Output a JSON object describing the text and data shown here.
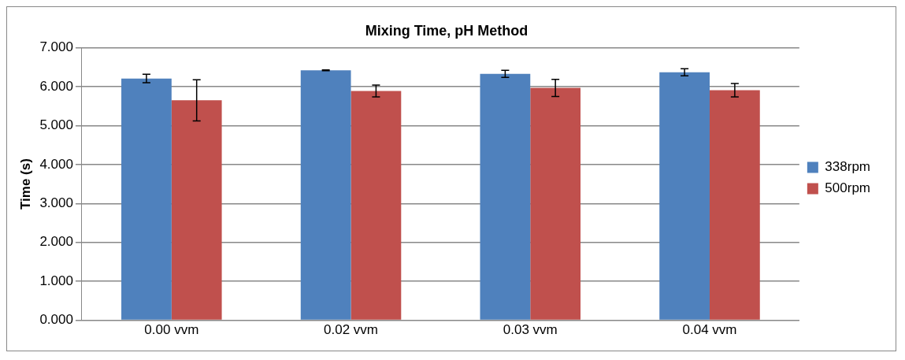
{
  "chart_data": {
    "type": "bar",
    "title": "Mixing Time, pH Method",
    "ylabel": "Time (s)",
    "categories": [
      "0.00 vvm",
      "0.02 vvm",
      "0.03 vvm",
      "0.04 vvm"
    ],
    "series": [
      {
        "name": "338rpm",
        "color": "#4f81bd",
        "values": [
          6.21,
          6.42,
          6.33,
          6.37
        ],
        "errors": [
          0.11,
          0.01,
          0.09,
          0.09
        ]
      },
      {
        "name": "500rpm",
        "color": "#c0504d",
        "values": [
          5.65,
          5.89,
          5.97,
          5.91
        ],
        "errors": [
          0.53,
          0.15,
          0.22,
          0.17
        ]
      }
    ],
    "ylim": [
      0,
      7
    ],
    "yticks": [
      {
        "value": 0,
        "label": "0.000"
      },
      {
        "value": 1,
        "label": "1.000"
      },
      {
        "value": 2,
        "label": "2.000"
      },
      {
        "value": 3,
        "label": "3.000"
      },
      {
        "value": 4,
        "label": "4.000"
      },
      {
        "value": 5,
        "label": "5.000"
      },
      {
        "value": 6,
        "label": "6.000"
      },
      {
        "value": 7,
        "label": "7.000"
      }
    ],
    "grid": "y",
    "legend": "right"
  }
}
